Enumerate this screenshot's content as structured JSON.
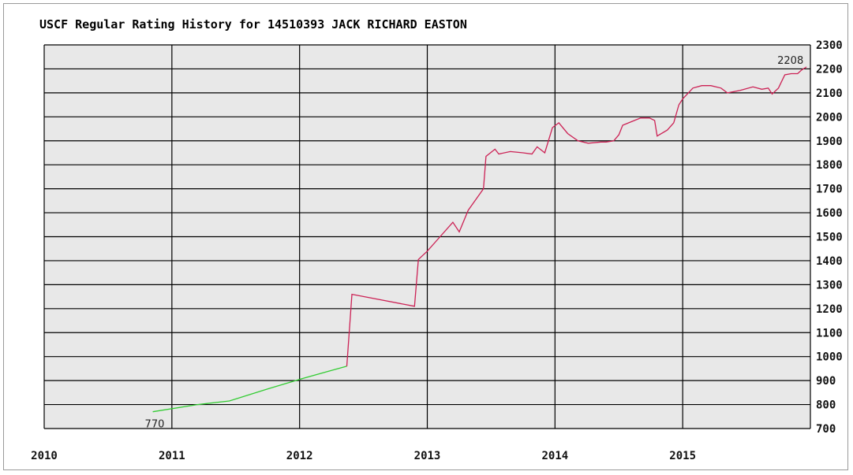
{
  "title": "USCF Regular Rating History for 14510393 JACK RICHARD EASTON",
  "chart_data": {
    "type": "line",
    "title": "USCF Regular Rating History for 14510393 JACK RICHARD EASTON",
    "xlabel": "",
    "ylabel": "",
    "xlim": [
      2010,
      2016
    ],
    "ylim": [
      700,
      2300
    ],
    "x_ticks": [
      "2010",
      "2011",
      "2012",
      "2013",
      "2014",
      "2015"
    ],
    "y_ticks": [
      "700",
      "800",
      "900",
      "1000",
      "1100",
      "1200",
      "1300",
      "1400",
      "1500",
      "1600",
      "1700",
      "1800",
      "1900",
      "2000",
      "2100",
      "2200",
      "2300"
    ],
    "grid": true,
    "legend": "none",
    "annotations": {
      "start_label": "770",
      "end_label": "2208"
    },
    "series": [
      {
        "color": "#33cc33",
        "points": [
          [
            2010.85,
            770
          ],
          [
            2011.2,
            800
          ],
          [
            2011.45,
            815
          ],
          [
            2011.75,
            865
          ],
          [
            2012.0,
            905
          ],
          [
            2012.2,
            935
          ],
          [
            2012.37,
            960
          ]
        ]
      },
      {
        "color": "#cc2255",
        "points": [
          [
            2012.37,
            960
          ],
          [
            2012.41,
            1260
          ],
          [
            2012.9,
            1210
          ],
          [
            2012.93,
            1405
          ],
          [
            2013.0,
            1440
          ],
          [
            2013.1,
            1500
          ],
          [
            2013.2,
            1560
          ],
          [
            2013.25,
            1520
          ],
          [
            2013.32,
            1610
          ],
          [
            2013.44,
            1700
          ],
          [
            2013.46,
            1835
          ],
          [
            2013.53,
            1865
          ],
          [
            2013.56,
            1845
          ],
          [
            2013.65,
            1855
          ],
          [
            2013.75,
            1850
          ],
          [
            2013.82,
            1845
          ],
          [
            2013.86,
            1875
          ],
          [
            2013.92,
            1850
          ],
          [
            2013.98,
            1955
          ],
          [
            2014.03,
            1975
          ],
          [
            2014.1,
            1930
          ],
          [
            2014.18,
            1900
          ],
          [
            2014.26,
            1890
          ],
          [
            2014.36,
            1895
          ],
          [
            2014.4,
            1895
          ],
          [
            2014.46,
            1900
          ],
          [
            2014.5,
            1925
          ],
          [
            2014.53,
            1965
          ],
          [
            2014.6,
            1980
          ],
          [
            2014.67,
            1995
          ],
          [
            2014.74,
            1995
          ],
          [
            2014.78,
            1985
          ],
          [
            2014.8,
            1920
          ],
          [
            2014.88,
            1945
          ],
          [
            2014.93,
            1975
          ],
          [
            2014.97,
            2050
          ],
          [
            2015.0,
            2075
          ],
          [
            2015.08,
            2120
          ],
          [
            2015.15,
            2130
          ],
          [
            2015.22,
            2130
          ],
          [
            2015.3,
            2120
          ],
          [
            2015.35,
            2100
          ],
          [
            2015.45,
            2110
          ],
          [
            2015.55,
            2125
          ],
          [
            2015.62,
            2115
          ],
          [
            2015.67,
            2120
          ],
          [
            2015.7,
            2095
          ],
          [
            2015.75,
            2120
          ],
          [
            2015.8,
            2175
          ],
          [
            2015.85,
            2180
          ],
          [
            2015.9,
            2180
          ],
          [
            2015.93,
            2195
          ],
          [
            2015.97,
            2208
          ]
        ]
      }
    ]
  }
}
